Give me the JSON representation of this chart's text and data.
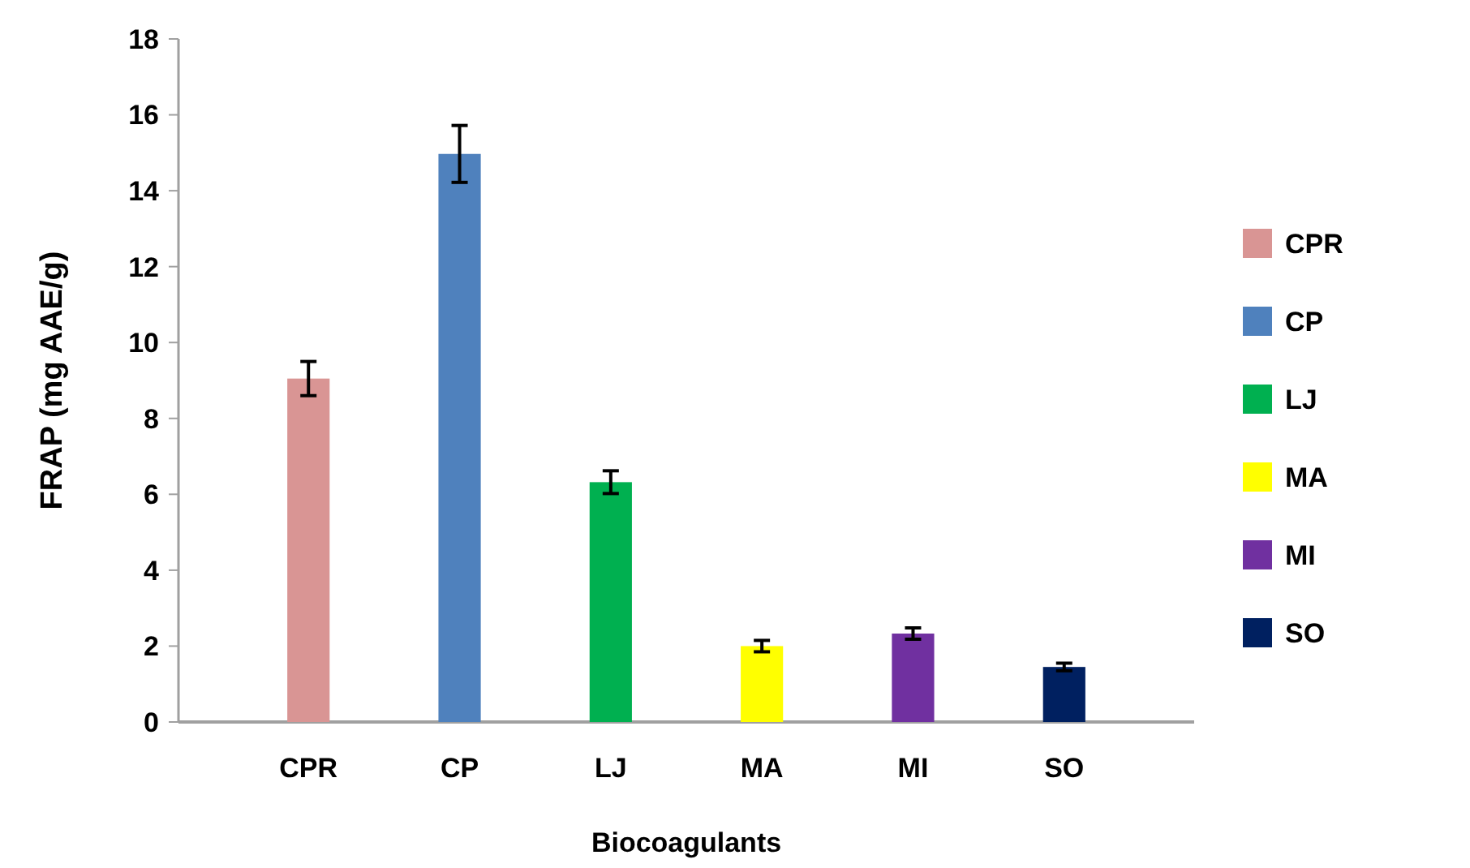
{
  "chart_data": {
    "type": "bar",
    "xlabel": "Biocoagulants",
    "ylabel": "FRAP (mg AAE/g)",
    "categories": [
      "CPR",
      "CP",
      "LJ",
      "MA",
      "MI",
      "SO"
    ],
    "series": [
      {
        "name": "CPR",
        "color": "#d99594",
        "values": [
          9.05,
          null,
          null,
          null,
          null,
          null
        ],
        "errors": [
          0.45,
          null,
          null,
          null,
          null,
          null
        ]
      },
      {
        "name": "CP",
        "color": "#4f81bd",
        "values": [
          null,
          14.97,
          null,
          null,
          null,
          null
        ],
        "errors": [
          null,
          0.75,
          null,
          null,
          null,
          null
        ]
      },
      {
        "name": "LJ",
        "color": "#00b050",
        "values": [
          null,
          null,
          6.32,
          null,
          null,
          null
        ],
        "errors": [
          null,
          null,
          0.3,
          null,
          null,
          null
        ]
      },
      {
        "name": "MA",
        "color": "#ffff00",
        "values": [
          null,
          null,
          null,
          2.0,
          null,
          null
        ],
        "errors": [
          null,
          null,
          null,
          0.15,
          null,
          null
        ]
      },
      {
        "name": "MI",
        "color": "#7030a0",
        "values": [
          null,
          null,
          null,
          null,
          2.33,
          null
        ],
        "errors": [
          null,
          null,
          null,
          null,
          0.15,
          null
        ]
      },
      {
        "name": "SO",
        "color": "#002060",
        "values": [
          null,
          null,
          null,
          null,
          null,
          1.45
        ],
        "errors": [
          null,
          null,
          null,
          null,
          null,
          0.1
        ]
      }
    ],
    "ylim": [
      0,
      18
    ],
    "yticks": [
      0,
      2,
      4,
      6,
      8,
      10,
      12,
      14,
      16,
      18
    ],
    "legend": "right"
  }
}
